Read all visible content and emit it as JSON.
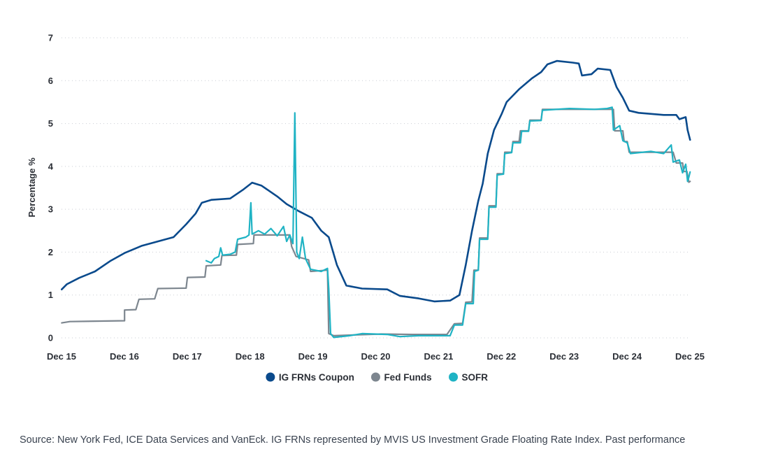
{
  "chart_data": {
    "type": "line",
    "ylabel": "Percentage %",
    "xlabel": "",
    "ylim": [
      0,
      7
    ],
    "xlim": [
      2015.917,
      2025.917
    ],
    "y_ticks": [
      0,
      1,
      2,
      3,
      4,
      5,
      6,
      7
    ],
    "x_ticks": [
      {
        "label": "Dec 15",
        "x": 2015.917
      },
      {
        "label": "Dec 16",
        "x": 2016.917
      },
      {
        "label": "Dec 17",
        "x": 2017.917
      },
      {
        "label": "Dec 18",
        "x": 2018.917
      },
      {
        "label": "Dec 19",
        "x": 2019.917
      },
      {
        "label": "Dec 20",
        "x": 2020.917
      },
      {
        "label": "Dec 21",
        "x": 2021.917
      },
      {
        "label": "Dec 22",
        "x": 2022.917
      },
      {
        "label": "Dec 23",
        "x": 2023.917
      },
      {
        "label": "Dec 24",
        "x": 2024.917
      },
      {
        "label": "Dec 25",
        "x": 2025.917
      }
    ],
    "grid": true,
    "legend_position": "bottom-center",
    "series": [
      {
        "name": "IG FRNs Coupon",
        "color": "#0a4a8c",
        "points": [
          [
            2015.92,
            1.13
          ],
          [
            2016.0,
            1.25
          ],
          [
            2016.2,
            1.4
          ],
          [
            2016.45,
            1.55
          ],
          [
            2016.7,
            1.8
          ],
          [
            2016.92,
            1.98
          ],
          [
            2017.2,
            2.15
          ],
          [
            2017.45,
            2.25
          ],
          [
            2017.7,
            2.35
          ],
          [
            2017.9,
            2.65
          ],
          [
            2018.05,
            2.9
          ],
          [
            2018.15,
            3.15
          ],
          [
            2018.3,
            3.22
          ],
          [
            2018.6,
            3.25
          ],
          [
            2018.8,
            3.45
          ],
          [
            2018.95,
            3.62
          ],
          [
            2019.1,
            3.55
          ],
          [
            2019.35,
            3.3
          ],
          [
            2019.5,
            3.12
          ],
          [
            2019.7,
            2.95
          ],
          [
            2019.9,
            2.8
          ],
          [
            2020.05,
            2.5
          ],
          [
            2020.17,
            2.35
          ],
          [
            2020.3,
            1.7
          ],
          [
            2020.45,
            1.22
          ],
          [
            2020.7,
            1.15
          ],
          [
            2021.1,
            1.13
          ],
          [
            2021.3,
            0.98
          ],
          [
            2021.6,
            0.92
          ],
          [
            2021.85,
            0.85
          ],
          [
            2022.1,
            0.87
          ],
          [
            2022.25,
            1.0
          ],
          [
            2022.35,
            1.7
          ],
          [
            2022.45,
            2.5
          ],
          [
            2022.55,
            3.2
          ],
          [
            2022.62,
            3.6
          ],
          [
            2022.7,
            4.3
          ],
          [
            2022.8,
            4.85
          ],
          [
            2022.92,
            5.22
          ],
          [
            2023.0,
            5.5
          ],
          [
            2023.2,
            5.8
          ],
          [
            2023.4,
            6.05
          ],
          [
            2023.55,
            6.2
          ],
          [
            2023.65,
            6.38
          ],
          [
            2023.8,
            6.46
          ],
          [
            2024.05,
            6.42
          ],
          [
            2024.15,
            6.4
          ],
          [
            2024.2,
            6.12
          ],
          [
            2024.35,
            6.15
          ],
          [
            2024.45,
            6.28
          ],
          [
            2024.65,
            6.25
          ],
          [
            2024.75,
            5.85
          ],
          [
            2024.85,
            5.6
          ],
          [
            2024.95,
            5.3
          ],
          [
            2025.1,
            5.25
          ],
          [
            2025.5,
            5.2
          ],
          [
            2025.7,
            5.2
          ],
          [
            2025.75,
            5.1
          ],
          [
            2025.85,
            5.15
          ],
          [
            2025.88,
            4.85
          ],
          [
            2025.92,
            4.62
          ]
        ]
      },
      {
        "name": "Fed Funds",
        "color": "#7d868f",
        "points": [
          [
            2015.92,
            0.35
          ],
          [
            2016.05,
            0.38
          ],
          [
            2016.92,
            0.4
          ],
          [
            2016.92,
            0.65
          ],
          [
            2017.1,
            0.66
          ],
          [
            2017.15,
            0.9
          ],
          [
            2017.4,
            0.91
          ],
          [
            2017.45,
            1.15
          ],
          [
            2017.9,
            1.16
          ],
          [
            2017.92,
            1.41
          ],
          [
            2018.2,
            1.42
          ],
          [
            2018.22,
            1.68
          ],
          [
            2018.45,
            1.7
          ],
          [
            2018.47,
            1.92
          ],
          [
            2018.7,
            1.93
          ],
          [
            2018.72,
            2.18
          ],
          [
            2018.97,
            2.2
          ],
          [
            2018.98,
            2.4
          ],
          [
            2019.55,
            2.4
          ],
          [
            2019.58,
            2.13
          ],
          [
            2019.65,
            1.9
          ],
          [
            2019.85,
            1.82
          ],
          [
            2019.88,
            1.55
          ],
          [
            2020.15,
            1.58
          ],
          [
            2020.17,
            0.1
          ],
          [
            2020.25,
            0.05
          ],
          [
            2021.0,
            0.09
          ],
          [
            2021.5,
            0.08
          ],
          [
            2022.05,
            0.08
          ],
          [
            2022.17,
            0.33
          ],
          [
            2022.3,
            0.34
          ],
          [
            2022.35,
            0.83
          ],
          [
            2022.45,
            0.84
          ],
          [
            2022.48,
            1.58
          ],
          [
            2022.55,
            1.58
          ],
          [
            2022.57,
            2.33
          ],
          [
            2022.7,
            2.33
          ],
          [
            2022.72,
            3.08
          ],
          [
            2022.83,
            3.08
          ],
          [
            2022.85,
            3.83
          ],
          [
            2022.95,
            3.83
          ],
          [
            2022.97,
            4.33
          ],
          [
            2023.08,
            4.33
          ],
          [
            2023.1,
            4.58
          ],
          [
            2023.2,
            4.58
          ],
          [
            2023.22,
            4.83
          ],
          [
            2023.35,
            4.83
          ],
          [
            2023.37,
            5.08
          ],
          [
            2023.55,
            5.08
          ],
          [
            2023.57,
            5.33
          ],
          [
            2024.7,
            5.33
          ],
          [
            2024.72,
            4.83
          ],
          [
            2024.85,
            4.83
          ],
          [
            2024.87,
            4.58
          ],
          [
            2024.92,
            4.58
          ],
          [
            2024.95,
            4.33
          ],
          [
            2025.65,
            4.33
          ],
          [
            2025.7,
            4.08
          ],
          [
            2025.8,
            4.08
          ],
          [
            2025.82,
            3.88
          ],
          [
            2025.87,
            3.88
          ],
          [
            2025.9,
            3.63
          ],
          [
            2025.92,
            3.65
          ]
        ]
      },
      {
        "name": "SOFR",
        "color": "#1fb3c4",
        "points": [
          [
            2018.22,
            1.8
          ],
          [
            2018.3,
            1.75
          ],
          [
            2018.35,
            1.85
          ],
          [
            2018.42,
            1.9
          ],
          [
            2018.45,
            2.1
          ],
          [
            2018.48,
            1.93
          ],
          [
            2018.6,
            1.95
          ],
          [
            2018.68,
            2.0
          ],
          [
            2018.72,
            2.3
          ],
          [
            2018.85,
            2.35
          ],
          [
            2018.9,
            2.4
          ],
          [
            2018.93,
            3.15
          ],
          [
            2018.95,
            2.42
          ],
          [
            2019.05,
            2.5
          ],
          [
            2019.15,
            2.42
          ],
          [
            2019.25,
            2.55
          ],
          [
            2019.35,
            2.38
          ],
          [
            2019.45,
            2.6
          ],
          [
            2019.5,
            2.25
          ],
          [
            2019.55,
            2.4
          ],
          [
            2019.6,
            2.2
          ],
          [
            2019.63,
            5.25
          ],
          [
            2019.66,
            2.0
          ],
          [
            2019.7,
            1.85
          ],
          [
            2019.75,
            2.35
          ],
          [
            2019.8,
            1.85
          ],
          [
            2019.88,
            1.6
          ],
          [
            2020.05,
            1.55
          ],
          [
            2020.15,
            1.62
          ],
          [
            2020.17,
            1.15
          ],
          [
            2020.2,
            0.1
          ],
          [
            2020.25,
            0.01
          ],
          [
            2020.5,
            0.05
          ],
          [
            2020.7,
            0.1
          ],
          [
            2021.1,
            0.08
          ],
          [
            2021.3,
            0.03
          ],
          [
            2021.6,
            0.05
          ],
          [
            2022.1,
            0.05
          ],
          [
            2022.17,
            0.3
          ],
          [
            2022.3,
            0.3
          ],
          [
            2022.35,
            0.8
          ],
          [
            2022.47,
            0.8
          ],
          [
            2022.49,
            1.55
          ],
          [
            2022.55,
            1.58
          ],
          [
            2022.57,
            2.3
          ],
          [
            2022.7,
            2.3
          ],
          [
            2022.72,
            3.05
          ],
          [
            2022.83,
            3.05
          ],
          [
            2022.85,
            3.8
          ],
          [
            2022.95,
            3.82
          ],
          [
            2022.97,
            4.3
          ],
          [
            2023.08,
            4.32
          ],
          [
            2023.1,
            4.55
          ],
          [
            2023.22,
            4.55
          ],
          [
            2023.24,
            4.82
          ],
          [
            2023.35,
            4.82
          ],
          [
            2023.37,
            5.06
          ],
          [
            2023.55,
            5.07
          ],
          [
            2023.57,
            5.31
          ],
          [
            2024.0,
            5.35
          ],
          [
            2024.4,
            5.33
          ],
          [
            2024.6,
            5.35
          ],
          [
            2024.68,
            5.38
          ],
          [
            2024.7,
            4.85
          ],
          [
            2024.8,
            4.95
          ],
          [
            2024.85,
            4.6
          ],
          [
            2024.92,
            4.55
          ],
          [
            2024.97,
            4.3
          ],
          [
            2025.3,
            4.35
          ],
          [
            2025.5,
            4.3
          ],
          [
            2025.62,
            4.5
          ],
          [
            2025.65,
            4.1
          ],
          [
            2025.75,
            4.15
          ],
          [
            2025.8,
            3.85
          ],
          [
            2025.85,
            4.05
          ],
          [
            2025.88,
            3.65
          ],
          [
            2025.9,
            3.75
          ],
          [
            2025.92,
            3.87
          ]
        ]
      }
    ]
  },
  "source_text": "Source: New York Fed, ICE Data Services and VanEck. IG FRNs represented by MVIS US Investment Grade Floating Rate Index. Past performance"
}
